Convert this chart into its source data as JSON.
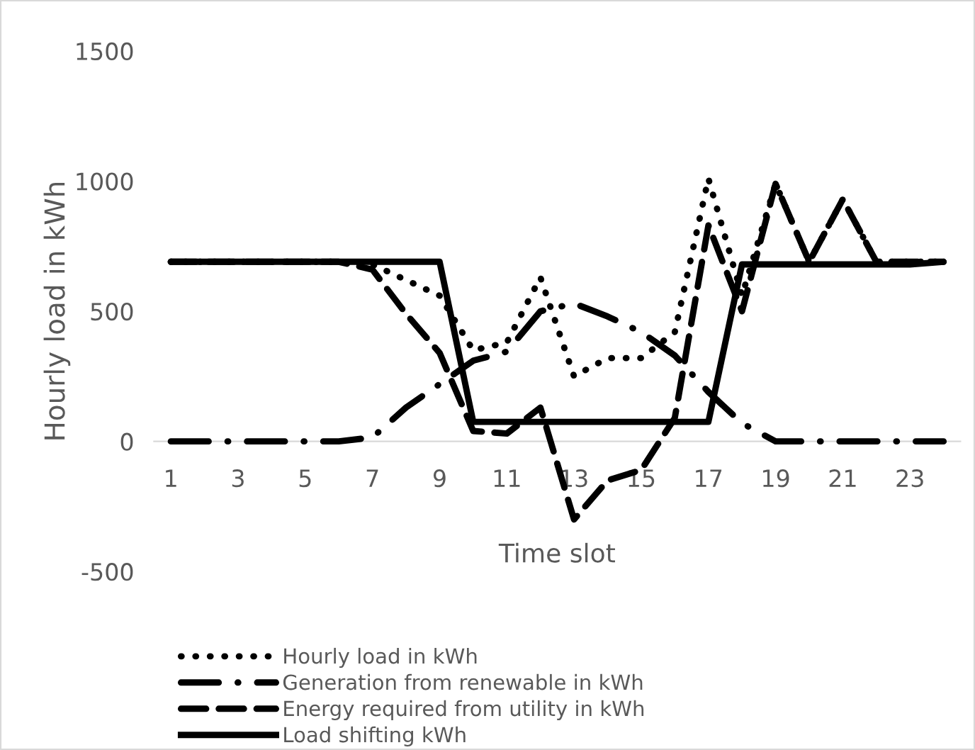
{
  "chart_data": {
    "type": "line",
    "xlabel": "Time slot",
    "ylabel": "Hourly load in kWh",
    "categories": [
      "1",
      null,
      "3",
      null,
      "5",
      null,
      "7",
      null,
      "9",
      null,
      "11",
      null,
      "13",
      null,
      "15",
      null,
      "17",
      null,
      "19",
      null,
      "21",
      null,
      "23",
      null
    ],
    "series": [
      {
        "name": "Hourly load in kWh",
        "color": "#000000",
        "line_style": "dotted",
        "values": [
          690,
          690,
          690,
          690,
          690,
          690,
          680,
          620,
          560,
          350,
          380,
          630,
          250,
          320,
          320,
          420,
          1010,
          560,
          990,
          690,
          930,
          690,
          690,
          690
        ]
      },
      {
        "name": "Generation from renewable in kWh",
        "color": "#000000",
        "line_style": "dashdot",
        "values": [
          0,
          0,
          0,
          0,
          0,
          0,
          15,
          130,
          220,
          310,
          345,
          500,
          530,
          480,
          420,
          330,
          190,
          70,
          0,
          0,
          0,
          0,
          0,
          0
        ]
      },
      {
        "name": "Energy required from utility in kWh",
        "color": "#000000",
        "line_style": "dashed",
        "values": [
          690,
          690,
          690,
          690,
          690,
          690,
          660,
          490,
          340,
          40,
          30,
          130,
          -300,
          -150,
          -110,
          90,
          830,
          500,
          990,
          690,
          930,
          690,
          690,
          690
        ]
      },
      {
        "name": "Load shifting kWh",
        "color": "#000000",
        "line_style": "solid",
        "values": [
          690,
          690,
          690,
          690,
          690,
          690,
          690,
          690,
          690,
          75,
          75,
          75,
          75,
          75,
          75,
          75,
          75,
          680,
          680,
          680,
          680,
          680,
          680,
          690
        ]
      }
    ],
    "ylim": [
      -500,
      1500
    ],
    "yticks": [
      {
        "value": -500,
        "label": "-500"
      },
      0,
      500,
      1000,
      1500
    ],
    "grid": false,
    "legend": "bottom",
    "marker": "none"
  }
}
